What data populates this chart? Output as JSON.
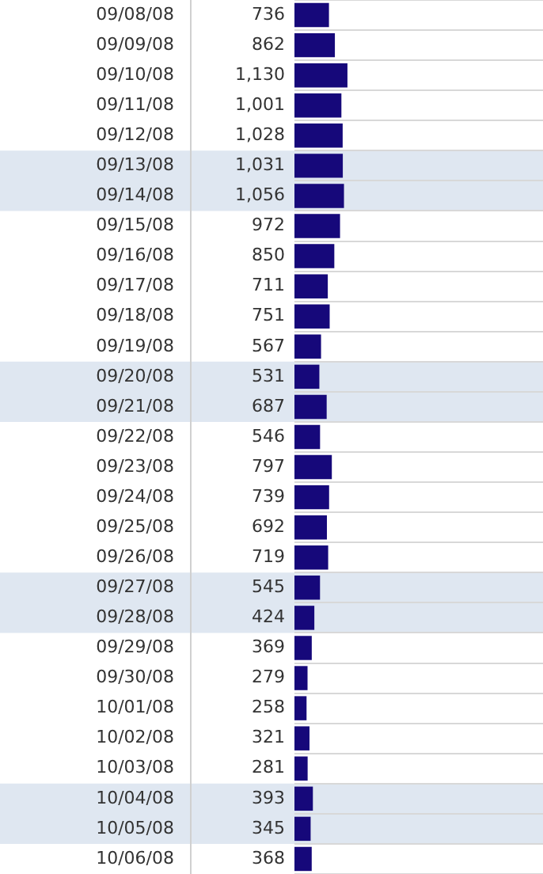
{
  "chart_data": {
    "type": "bar",
    "orientation": "horizontal",
    "categories": [
      "09/08/08",
      "09/09/08",
      "09/10/08",
      "09/11/08",
      "09/12/08",
      "09/13/08",
      "09/14/08",
      "09/15/08",
      "09/16/08",
      "09/17/08",
      "09/18/08",
      "09/19/08",
      "09/20/08",
      "09/21/08",
      "09/22/08",
      "09/23/08",
      "09/24/08",
      "09/25/08",
      "09/26/08",
      "09/27/08",
      "09/28/08",
      "09/29/08",
      "09/30/08",
      "10/01/08",
      "10/02/08",
      "10/03/08",
      "10/04/08",
      "10/05/08",
      "10/06/08"
    ],
    "values": [
      736,
      862,
      1130,
      1001,
      1028,
      1031,
      1056,
      972,
      850,
      711,
      751,
      567,
      531,
      687,
      546,
      797,
      739,
      692,
      719,
      545,
      424,
      369,
      279,
      258,
      321,
      281,
      393,
      345,
      368
    ],
    "value_labels": [
      "736",
      "862",
      "1,130",
      "1,001",
      "1,028",
      "1,031",
      "1,056",
      "972",
      "850",
      "711",
      "751",
      "567",
      "531",
      "687",
      "546",
      "797",
      "739",
      "692",
      "719",
      "545",
      "424",
      "369",
      "279",
      "258",
      "321",
      "281",
      "393",
      "345",
      "368"
    ],
    "color": "#16087a",
    "xlim": [
      0,
      5300
    ],
    "tick_labels": "y",
    "grid": "y",
    "legend": false,
    "bands": [
      {
        "axis": "y",
        "from": "09/13/08",
        "to": "09/14/08",
        "color": "#dfe7f1"
      },
      {
        "axis": "y",
        "from": "09/20/08",
        "to": "09/21/08",
        "color": "#dfe7f1"
      },
      {
        "axis": "y",
        "from": "09/27/08",
        "to": "09/28/08",
        "color": "#dfe7f1"
      },
      {
        "axis": "y",
        "from": "10/04/08",
        "to": "10/05/08",
        "color": "#dfe7f1"
      }
    ]
  }
}
